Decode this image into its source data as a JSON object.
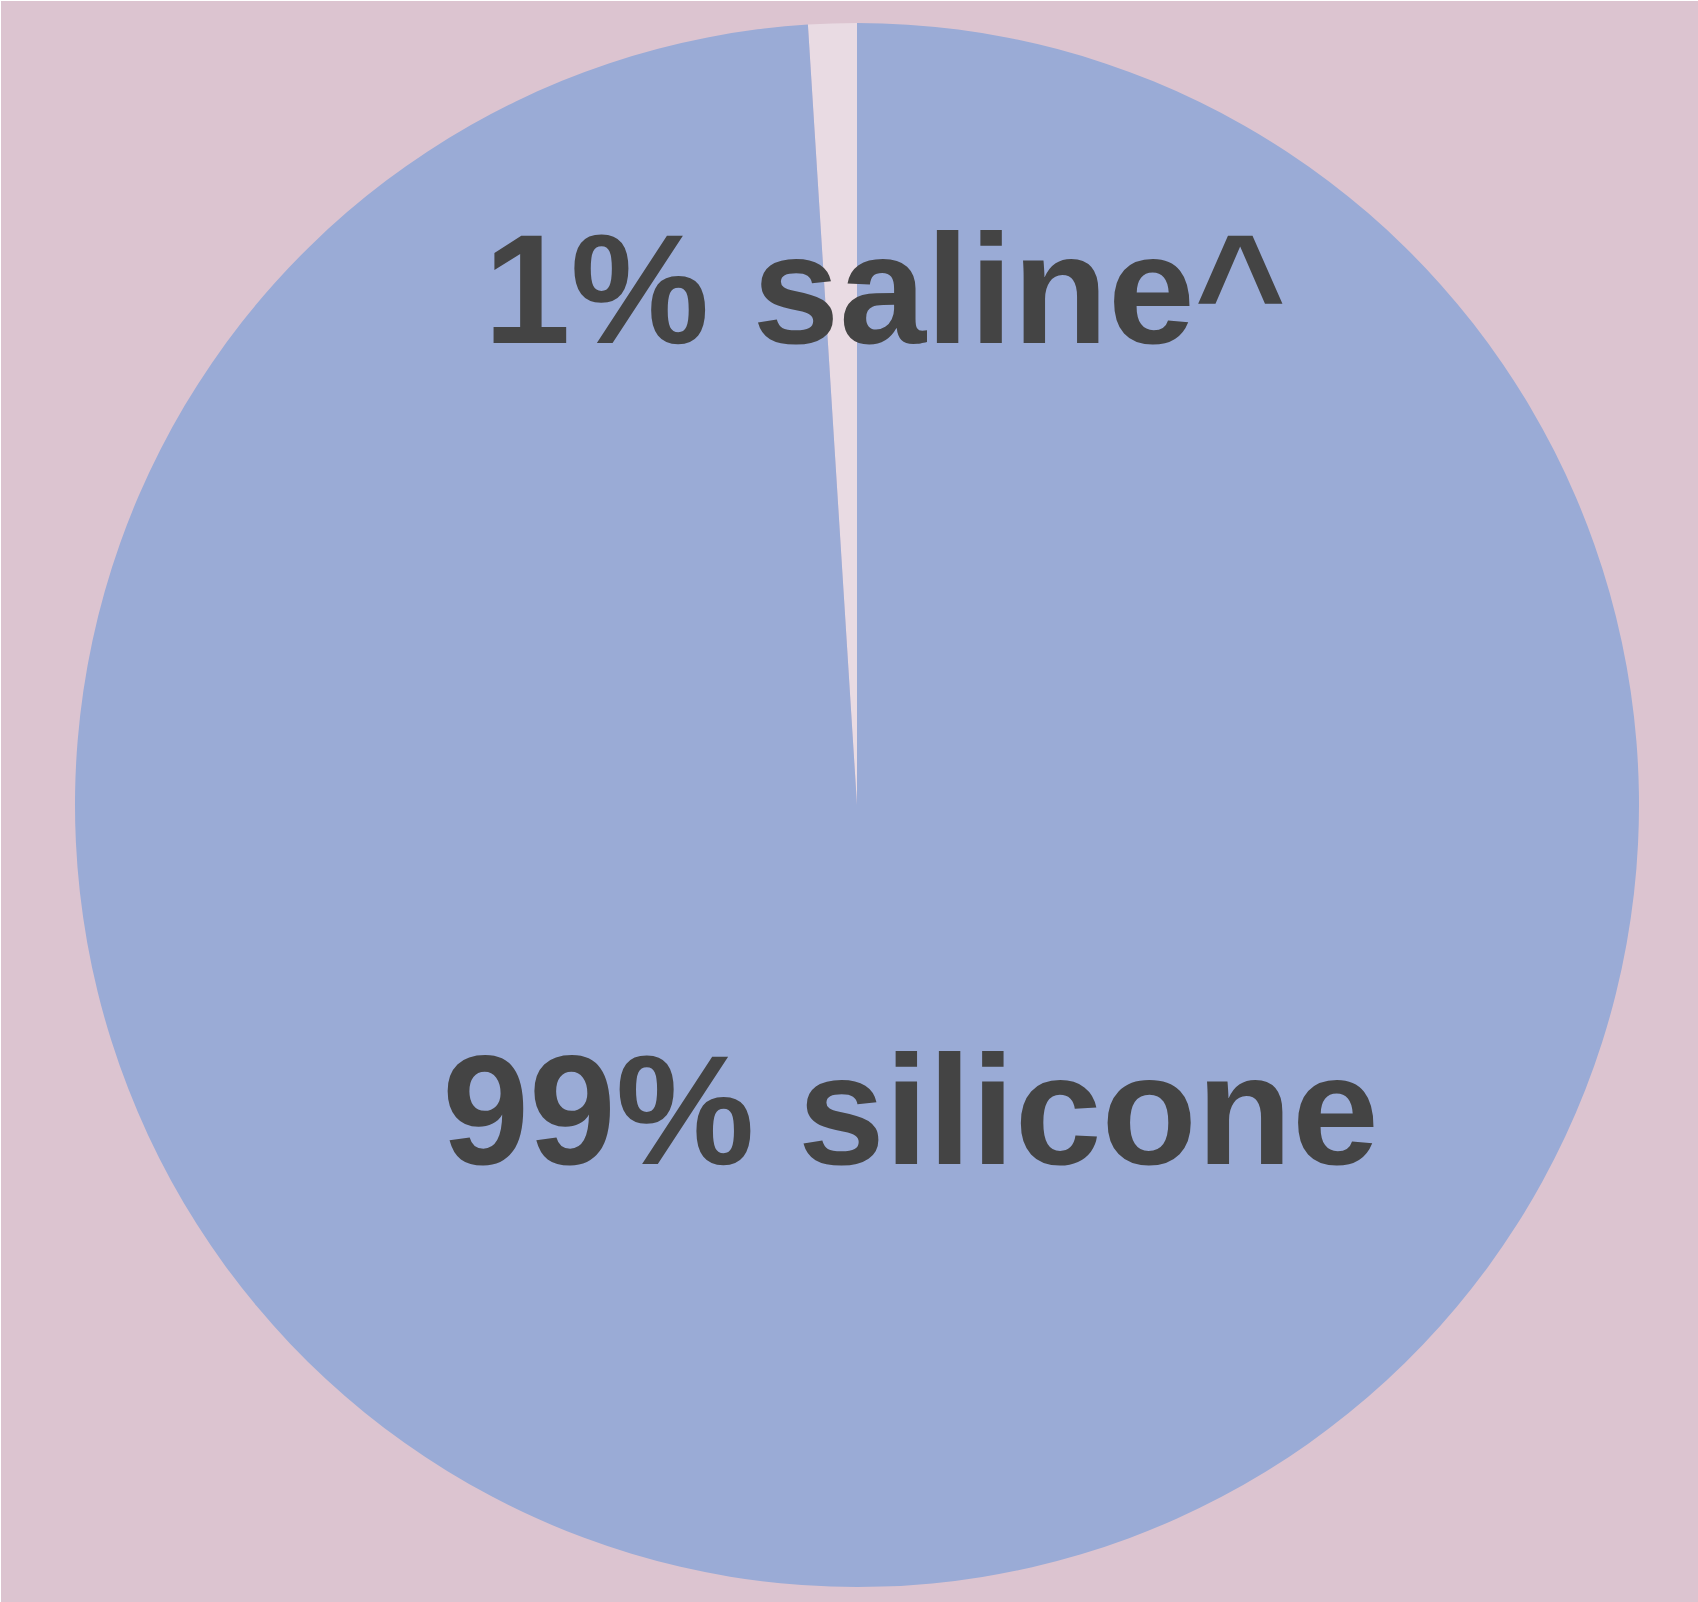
{
  "chart_data": {
    "type": "pie",
    "categories": [
      "1% saline^",
      "99% silicone"
    ],
    "values": [
      1,
      99
    ],
    "colors": [
      "#e9dbe3",
      "#9aabd6"
    ]
  }
}
